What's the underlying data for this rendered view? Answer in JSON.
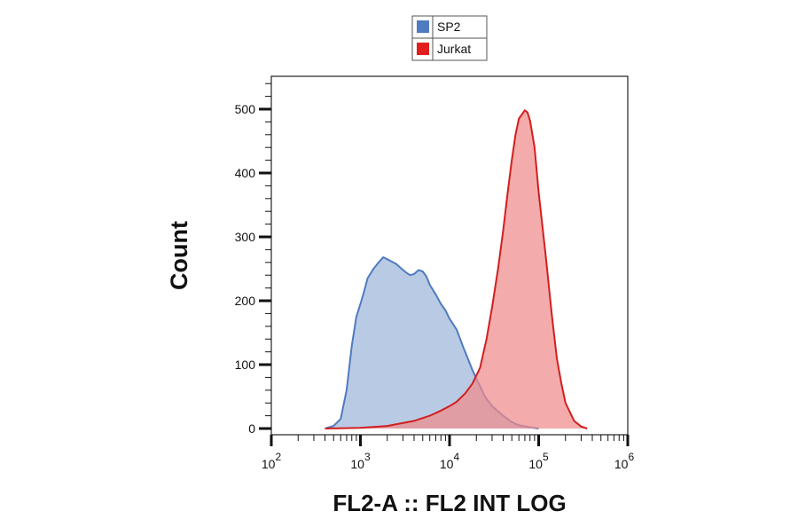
{
  "chart_data": {
    "type": "area",
    "xlabel": "FL2-A :: FL2 INT LOG",
    "ylabel": "Count",
    "x_scale": "log",
    "xlim": [
      100,
      1000000
    ],
    "ylim": [
      0,
      550
    ],
    "x_ticks": [
      {
        "base": "10",
        "exp": "2"
      },
      {
        "base": "10",
        "exp": "3"
      },
      {
        "base": "10",
        "exp": "4"
      },
      {
        "base": "10",
        "exp": "5"
      },
      {
        "base": "10",
        "exp": "6"
      }
    ],
    "y_ticks": [
      "0",
      "100",
      "200",
      "300",
      "400",
      "500"
    ],
    "legend": {
      "placement": "top-center",
      "entries": [
        "SP2",
        "Jurkat"
      ]
    },
    "series": [
      {
        "name": "SP2",
        "color": "#4f7bbf",
        "fill": "#b5c8e3",
        "points": [
          [
            400,
            0
          ],
          [
            500,
            4
          ],
          [
            600,
            15
          ],
          [
            700,
            60
          ],
          [
            800,
            130
          ],
          [
            900,
            175
          ],
          [
            1000,
            195
          ],
          [
            1100,
            215
          ],
          [
            1200,
            235
          ],
          [
            1400,
            250
          ],
          [
            1600,
            260
          ],
          [
            1800,
            268
          ],
          [
            2000,
            265
          ],
          [
            2200,
            262
          ],
          [
            2500,
            258
          ],
          [
            2800,
            252
          ],
          [
            3200,
            245
          ],
          [
            3600,
            240
          ],
          [
            4000,
            242
          ],
          [
            4500,
            248
          ],
          [
            5000,
            246
          ],
          [
            5500,
            238
          ],
          [
            6000,
            225
          ],
          [
            7000,
            210
          ],
          [
            8000,
            195
          ],
          [
            9000,
            185
          ],
          [
            10000,
            172
          ],
          [
            12000,
            155
          ],
          [
            14000,
            130
          ],
          [
            16000,
            110
          ],
          [
            18000,
            92
          ],
          [
            20000,
            78
          ],
          [
            25000,
            50
          ],
          [
            30000,
            35
          ],
          [
            40000,
            20
          ],
          [
            50000,
            10
          ],
          [
            60000,
            5
          ],
          [
            80000,
            2
          ],
          [
            100000,
            0
          ]
        ]
      },
      {
        "name": "Jurkat",
        "color": "#d11f1f",
        "fill": "#f08a8a",
        "points": [
          [
            400,
            0
          ],
          [
            1000,
            1
          ],
          [
            2000,
            4
          ],
          [
            4000,
            12
          ],
          [
            6000,
            20
          ],
          [
            8000,
            28
          ],
          [
            10000,
            35
          ],
          [
            12000,
            42
          ],
          [
            15000,
            55
          ],
          [
            18000,
            70
          ],
          [
            22000,
            95
          ],
          [
            26000,
            140
          ],
          [
            30000,
            190
          ],
          [
            35000,
            250
          ],
          [
            40000,
            310
          ],
          [
            45000,
            370
          ],
          [
            50000,
            420
          ],
          [
            55000,
            460
          ],
          [
            60000,
            485
          ],
          [
            65000,
            492
          ],
          [
            70000,
            498
          ],
          [
            75000,
            495
          ],
          [
            80000,
            482
          ],
          [
            90000,
            440
          ],
          [
            100000,
            370
          ],
          [
            120000,
            270
          ],
          [
            140000,
            180
          ],
          [
            160000,
            110
          ],
          [
            180000,
            70
          ],
          [
            200000,
            40
          ],
          [
            250000,
            12
          ],
          [
            300000,
            3
          ],
          [
            350000,
            0
          ]
        ]
      }
    ]
  }
}
